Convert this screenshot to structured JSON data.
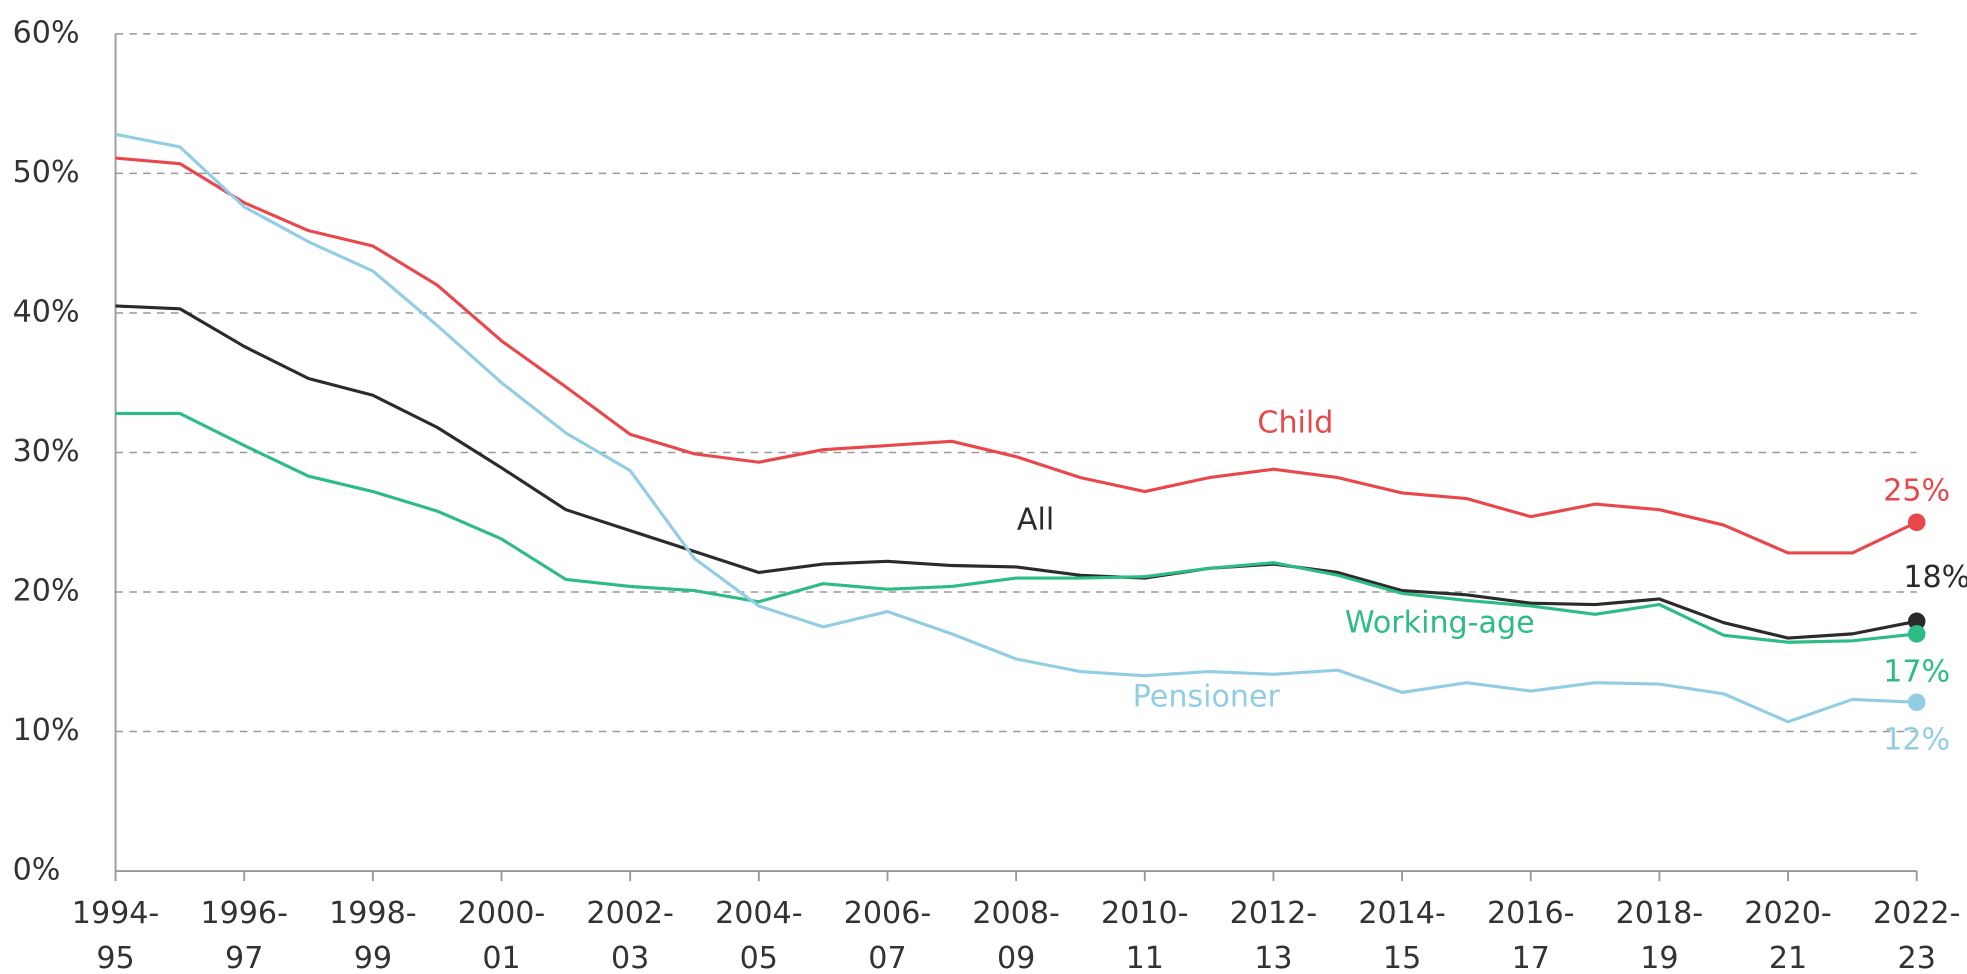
{
  "chart_data": {
    "type": "line",
    "categories": [
      [
        "1994-",
        "95"
      ],
      null,
      [
        "1996-",
        "97"
      ],
      null,
      [
        "1998-",
        "99"
      ],
      null,
      [
        "2000-",
        "01"
      ],
      null,
      [
        "2002-",
        "03"
      ],
      null,
      [
        "2004-",
        "05"
      ],
      null,
      [
        "2006-",
        "07"
      ],
      null,
      [
        "2008-",
        "09"
      ],
      null,
      [
        "2010-",
        "11"
      ],
      null,
      [
        "2012-",
        "13"
      ],
      null,
      [
        "2014-",
        "15"
      ],
      null,
      [
        "2016-",
        "17"
      ],
      null,
      [
        "2018-",
        "19"
      ],
      null,
      [
        "2020-",
        "21"
      ],
      null,
      [
        "2022-",
        "23"
      ]
    ],
    "ylim": [
      0,
      60
    ],
    "yticks": [
      {
        "value": 0,
        "label": "0%"
      },
      {
        "value": 10,
        "label": "10%"
      },
      {
        "value": 20,
        "label": "20%"
      },
      {
        "value": 30,
        "label": "30%"
      },
      {
        "value": 40,
        "label": "40%"
      },
      {
        "value": 50,
        "label": "50%"
      },
      {
        "value": 60,
        "label": "60%"
      }
    ],
    "grid": true,
    "series": [
      {
        "name": "Child",
        "color": "#e8474b",
        "values": [
          51.1,
          50.7,
          47.9,
          45.9,
          44.8,
          42,
          38,
          34.7,
          31.3,
          29.9,
          29.3,
          30.2,
          30.5,
          30.8,
          29.7,
          28.2,
          27.2,
          28.2,
          28.8,
          28.2,
          27.1,
          26.7,
          25.4,
          26.3,
          25.9,
          24.8,
          22.8,
          22.8,
          25
        ],
        "value_labels": [
          null,
          null,
          null,
          null,
          null,
          null,
          null,
          null,
          null,
          null,
          null,
          null,
          null,
          null,
          null,
          null,
          null,
          null,
          null,
          null,
          null,
          null,
          null,
          null,
          null,
          null,
          null,
          null,
          "25%"
        ]
      },
      {
        "name": "All",
        "color": "#2b2b2b",
        "values": [
          40.5,
          40.3,
          37.6,
          35.3,
          34.1,
          31.8,
          28.9,
          25.9,
          24.4,
          22.9,
          21.4,
          22,
          22.2,
          21.9,
          21.8,
          21.2,
          21,
          21.7,
          22,
          21.4,
          20.1,
          19.8,
          19.2,
          19.1,
          19.5,
          17.8,
          16.7,
          17,
          17.9
        ],
        "value_labels": [
          null,
          null,
          null,
          null,
          null,
          null,
          null,
          null,
          null,
          null,
          null,
          null,
          null,
          null,
          null,
          null,
          null,
          null,
          null,
          null,
          null,
          null,
          null,
          null,
          null,
          null,
          null,
          null,
          "18%"
        ]
      },
      {
        "name": "Working-age",
        "color": "#2dbb86",
        "values": [
          32.8,
          32.8,
          30.5,
          28.3,
          27.2,
          25.8,
          23.8,
          20.9,
          20.4,
          20.1,
          19.3,
          20.6,
          20.2,
          20.4,
          21,
          21,
          21.1,
          21.7,
          22.1,
          21.2,
          19.9,
          19.4,
          19,
          18.4,
          19.1,
          16.9,
          16.4,
          16.5,
          17
        ],
        "value_labels": [
          null,
          null,
          null,
          null,
          null,
          null,
          null,
          null,
          null,
          null,
          null,
          null,
          null,
          null,
          null,
          null,
          null,
          null,
          null,
          null,
          null,
          null,
          null,
          null,
          null,
          null,
          null,
          null,
          "17%"
        ]
      },
      {
        "name": "Pensioner",
        "color": "#92cde3",
        "values": [
          52.8,
          51.9,
          47.6,
          45.1,
          43,
          39.1,
          35,
          31.4,
          28.7,
          22.4,
          19,
          17.5,
          18.6,
          17,
          15.2,
          14.3,
          14,
          14.3,
          14.1,
          14.4,
          12.8,
          13.5,
          12.9,
          13.5,
          13.4,
          12.7,
          10.7,
          12.3,
          12.1
        ],
        "value_labels": [
          null,
          null,
          null,
          null,
          null,
          null,
          null,
          null,
          null,
          null,
          null,
          null,
          null,
          null,
          null,
          null,
          null,
          null,
          null,
          null,
          null,
          null,
          null,
          null,
          null,
          null,
          null,
          null,
          "12%"
        ]
      }
    ]
  }
}
